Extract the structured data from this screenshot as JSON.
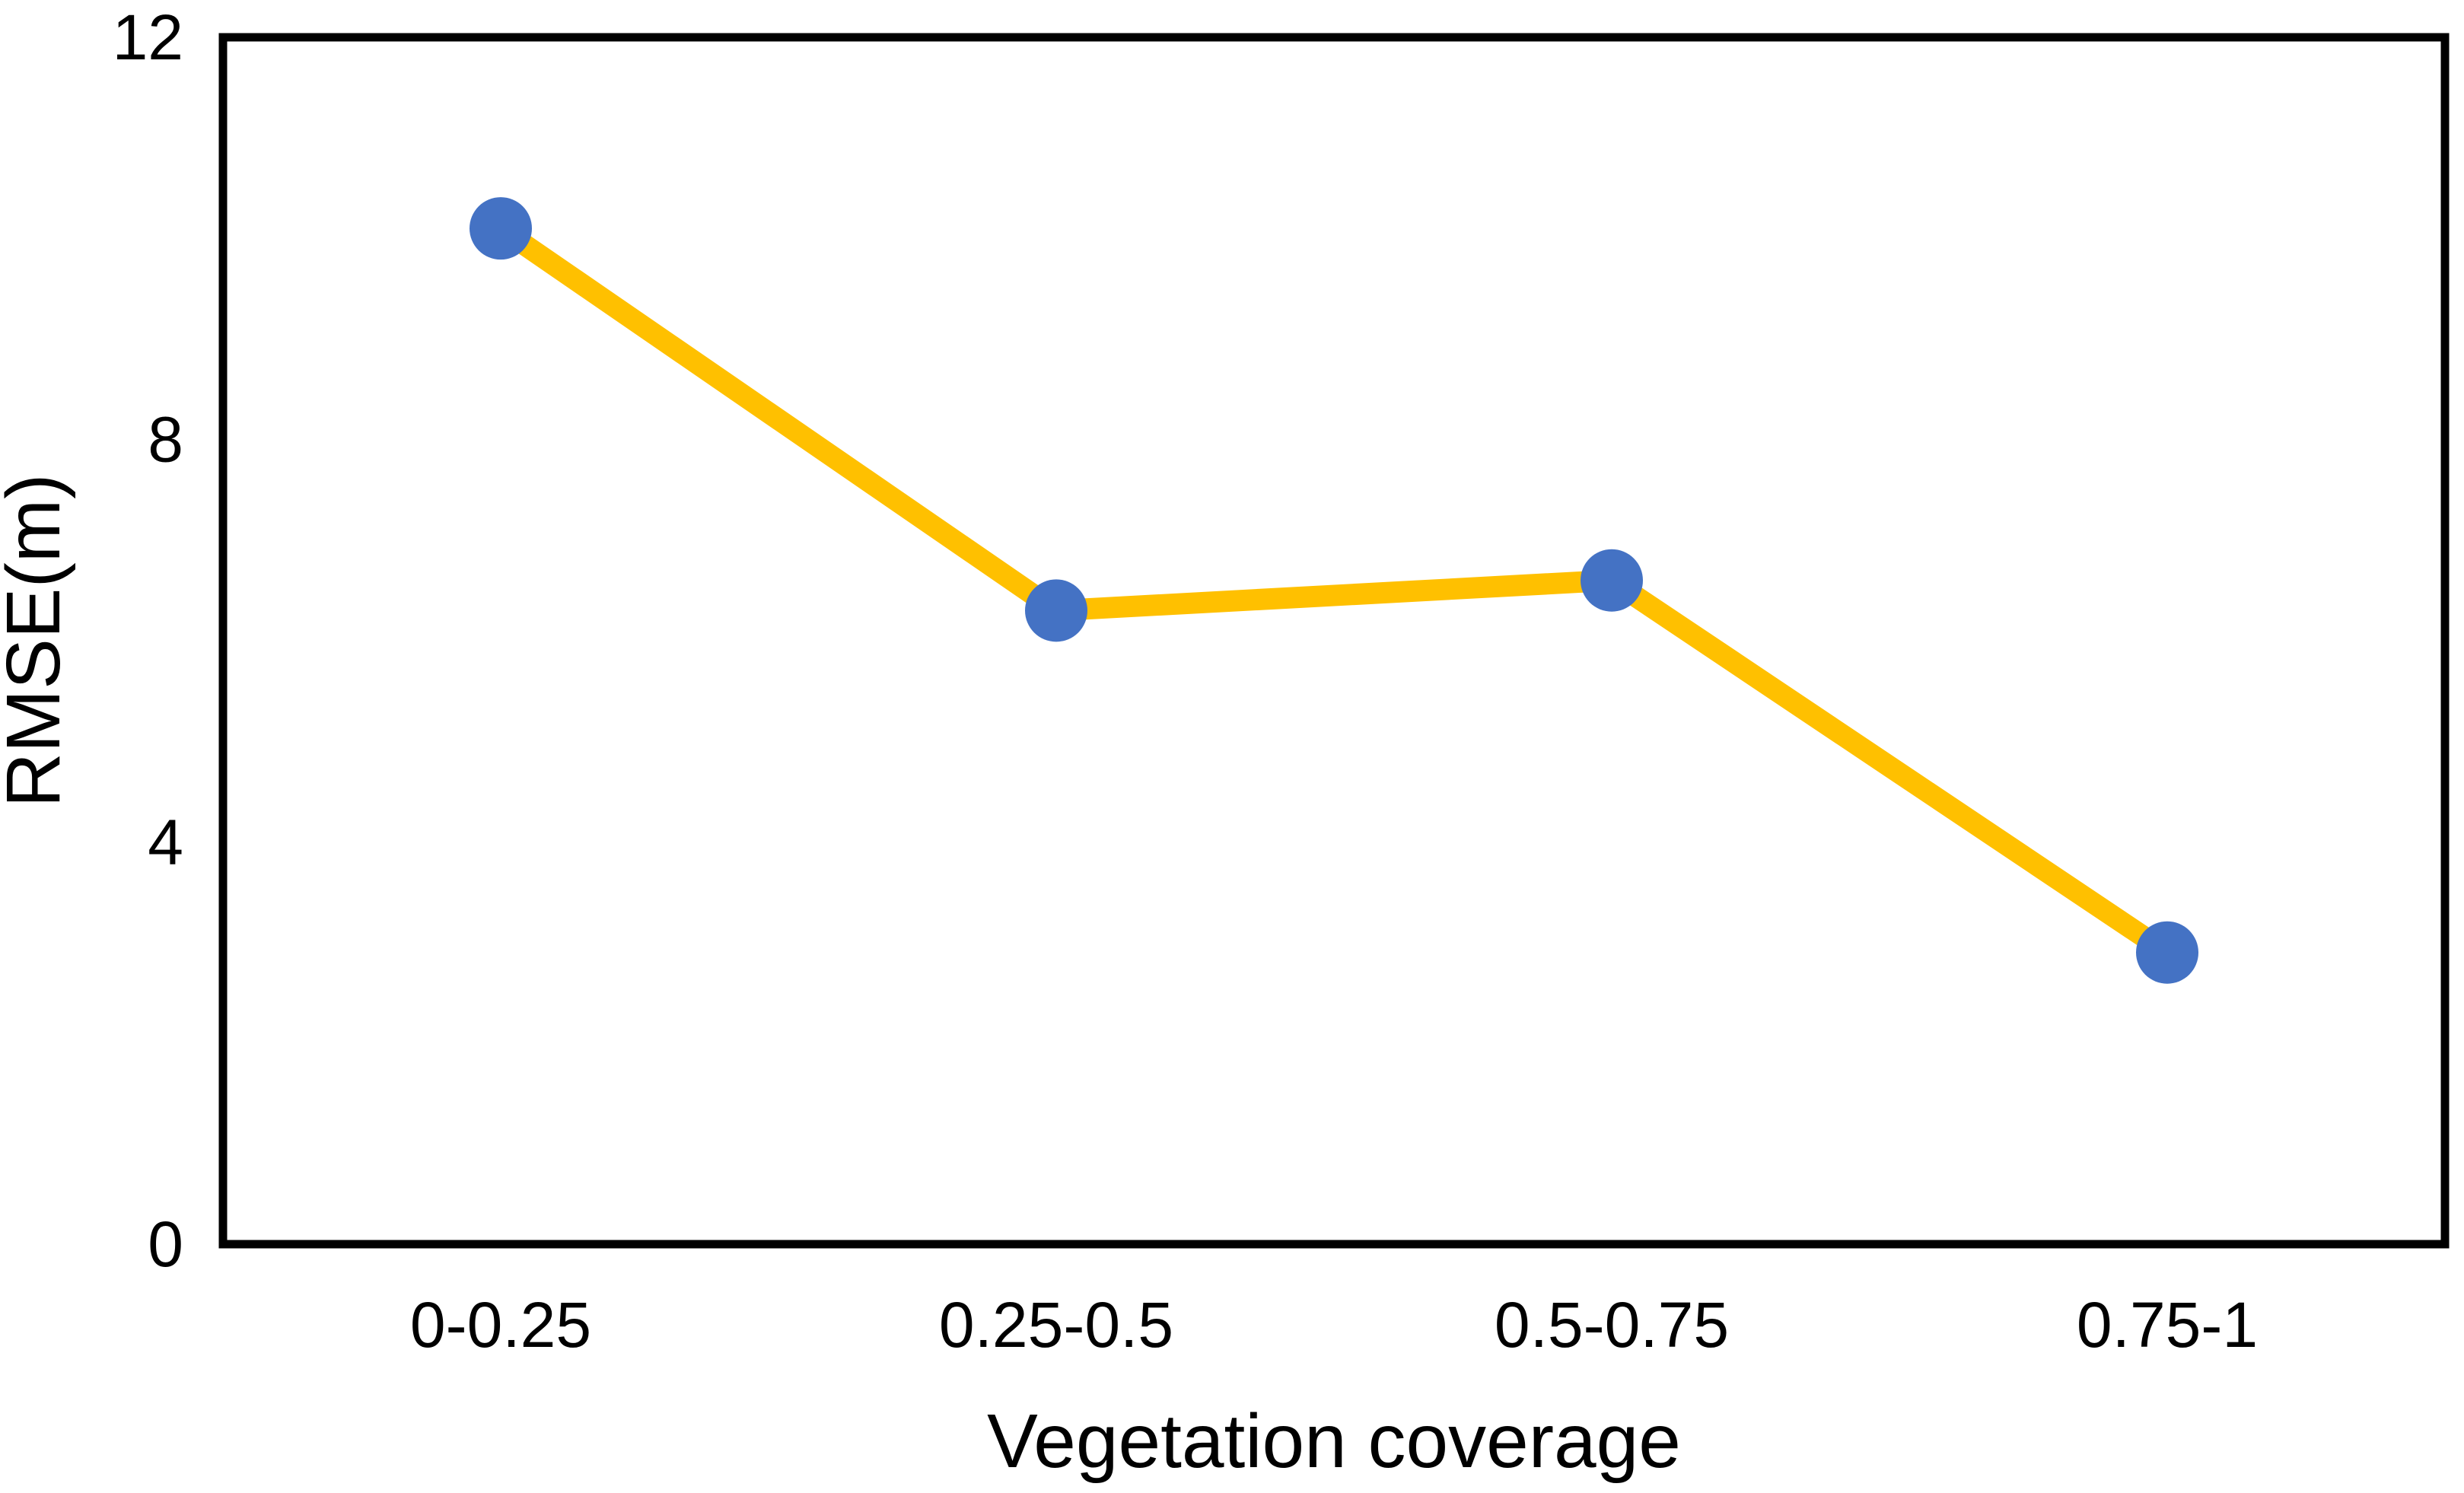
{
  "chart_data": {
    "type": "line",
    "title": "",
    "categories": [
      "0-0.25",
      "0.25-0.5",
      "0.5-0.75",
      "0.75-1"
    ],
    "values": [
      10.1,
      6.3,
      6.6,
      2.9
    ],
    "xlabel": "Vegetation coverage",
    "ylabel": "RMSE(m)",
    "ylim": [
      0,
      12
    ],
    "yticks": [
      0,
      4,
      8,
      12
    ],
    "ytick_labels": [
      "0",
      "4",
      "8",
      "12"
    ],
    "grid": false,
    "legend": false,
    "line_color": "#FFC000",
    "marker_color": "#4472C4",
    "marker_shape": "circle",
    "frame_color": "#000000",
    "background": "#FFFFFF"
  }
}
